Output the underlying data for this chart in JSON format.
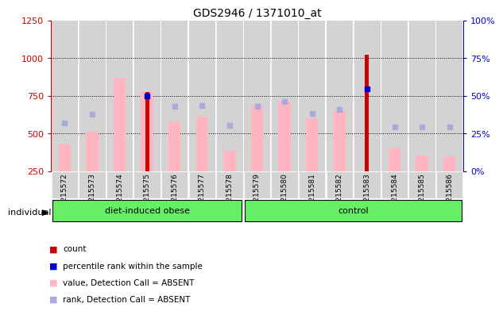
{
  "title": "GDS2946 / 1371010_at",
  "samples": [
    "GSM215572",
    "GSM215573",
    "GSM215574",
    "GSM215575",
    "GSM215576",
    "GSM215577",
    "GSM215578",
    "GSM215579",
    "GSM215580",
    "GSM215581",
    "GSM215582",
    "GSM215583",
    "GSM215584",
    "GSM215585",
    "GSM215586"
  ],
  "pink_values": [
    430,
    510,
    870,
    775,
    580,
    610,
    385,
    685,
    715,
    600,
    655,
    250,
    400,
    355,
    350
  ],
  "red_count": [
    null,
    null,
    null,
    775,
    null,
    null,
    null,
    null,
    null,
    null,
    null,
    1020,
    null,
    null,
    null
  ],
  "blue_rank_left": [
    null,
    null,
    null,
    750,
    null,
    null,
    null,
    null,
    null,
    null,
    null,
    795,
    null,
    null,
    null
  ],
  "lightblue_rank_left": [
    570,
    625,
    null,
    null,
    680,
    685,
    555,
    680,
    710,
    635,
    660,
    null,
    545,
    545,
    545
  ],
  "group1_label": "diet-induced obese",
  "group1_count": 7,
  "group2_label": "control",
  "group2_count": 8,
  "individual_label": "individual",
  "ylim_left": [
    250,
    1250
  ],
  "ylim_right": [
    0,
    100
  ],
  "yticks_left": [
    250,
    500,
    750,
    1000,
    1250
  ],
  "yticks_right": [
    0,
    25,
    50,
    75,
    100
  ],
  "ytick_labels_right": [
    "0%",
    "25%",
    "50%",
    "75%",
    "100%"
  ],
  "color_pink": "#FFB6C1",
  "color_red": "#CC0000",
  "color_blue": "#0000CC",
  "color_lightblue": "#AAAADD",
  "color_green": "#66EE66",
  "color_gray_bg": "#D3D3D3",
  "color_axis_left": "#CC0000",
  "color_axis_right": "#0000CC"
}
